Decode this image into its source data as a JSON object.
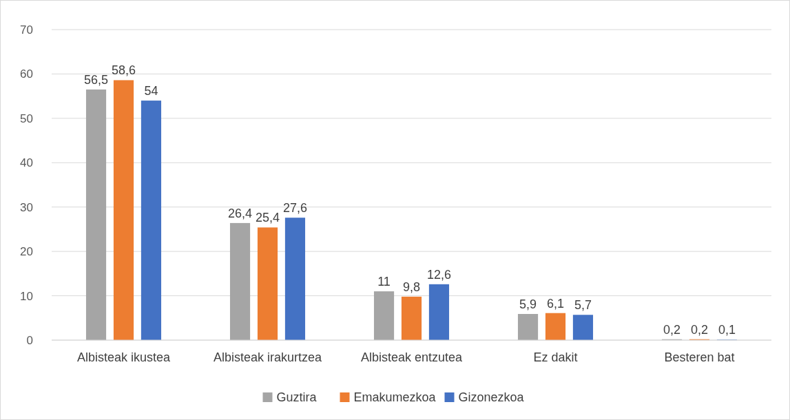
{
  "chart_data": {
    "type": "bar",
    "categories": [
      "Albisteak ikustea",
      "Albisteak irakurtzea",
      "Albisteak entzutea",
      "Ez dakit",
      "Besteren bat"
    ],
    "series": [
      {
        "name": "Guztira",
        "color": "#a5a5a5",
        "values": [
          56.5,
          26.4,
          11,
          5.9,
          0.2
        ],
        "value_labels": [
          "56,5",
          "26,4",
          "11",
          "5,9",
          "0,2"
        ]
      },
      {
        "name": "Emakumezkoa",
        "color": "#ed7d31",
        "values": [
          58.6,
          25.4,
          9.8,
          6.1,
          0.2
        ],
        "value_labels": [
          "58,6",
          "25,4",
          "9,8",
          "6,1",
          "0,2"
        ]
      },
      {
        "name": "Gizonezkoa",
        "color": "#4472c4",
        "values": [
          54,
          27.6,
          12.6,
          5.7,
          0.1
        ],
        "value_labels": [
          "54",
          "27,6",
          "12,6",
          "5,7",
          "0,1"
        ]
      }
    ],
    "ylim": [
      0,
      70
    ],
    "yticks": [
      0,
      10,
      20,
      30,
      40,
      50,
      60,
      70
    ],
    "grid": "y",
    "legend": "bottom"
  }
}
